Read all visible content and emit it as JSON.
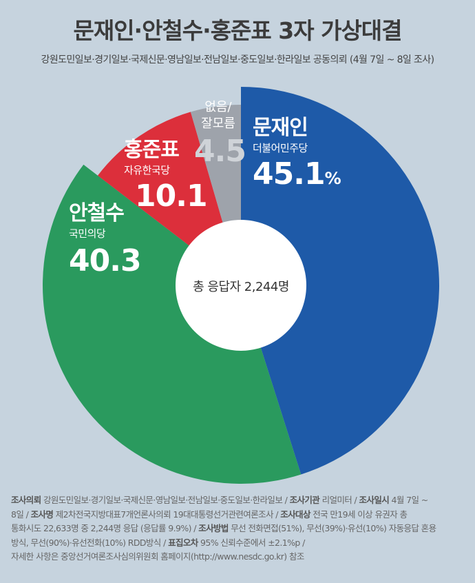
{
  "title": "문재인·안철수·홍준표 3자 가상대결",
  "subtitle": "강원도민일보·경기일보·국제신문·영남일보·전남일보·중도일보·한라일보 공동의뢰 (4월 7일 ~ 8일 조사)",
  "colors": {
    "moon": "#1e5aa8",
    "ahn": "#2a9a5e",
    "hong": "#dc2f3b",
    "none": "#9ea3ab",
    "background": "#c6d3de"
  },
  "center_label": "총 응답자 2,244명",
  "chart_data": {
    "type": "pie",
    "title": "문재인·안철수·홍준표 3자 가상대결",
    "unit": "%",
    "slices": [
      {
        "label": "문재인",
        "party": "더불어민주당",
        "value": 45.1,
        "display": "45.1",
        "color": "#1e5aa8"
      },
      {
        "label": "안철수",
        "party": "국민의당",
        "value": 40.3,
        "display": "40.3",
        "color": "#2a9a5e"
      },
      {
        "label": "홍준표",
        "party": "자유한국당",
        "value": 10.1,
        "display": "10.1",
        "color": "#dc2f3b"
      },
      {
        "label": "없음/",
        "label2": "잘모름",
        "party": "",
        "value": 4.5,
        "display": "4.5",
        "color": "#9ea3ab"
      }
    ]
  },
  "footer": {
    "line1_key1": "조사의뢰",
    "line1_val1": " 강원도민일보·경기일보·국제신문·영남일보·전남일보·중도일보·한라일보 / ",
    "line1_key2": "조사기관",
    "line1_val2": " 리얼미터 / ",
    "line1_key3": "조사일시",
    "line1_val3": " 4월 7일 ~",
    "line2_val0": "8일 / ",
    "line2_key1": "조사명",
    "line2_val1": " 제2차전국지방대표7개언론사의뢰 19대대통령선거관련여론조사 / ",
    "line2_key2": "조사대상",
    "line2_val2": " 전국  만19세 이상 유권자 총",
    "line3_val0": "통화시도 22,633명 중 2,244명 응답 (응답률 9.9%) / ",
    "line3_key1": "조사방법",
    "line3_val1": " 무선 전화면접(51%), 무선(39%)·유선(10%) 자동응답 혼용",
    "line4_val0": "방식, 무선(90%)·유선전화(10%) RDD방식 / ",
    "line4_key1": "표집오차",
    "line4_val1": " 95% 신뢰수준에서 ±2.1%p /",
    "line5": "자세한 사항은 중앙선거여론조사심의위원회 홈페이지(http://www.nesdc.go.kr) 참조"
  }
}
